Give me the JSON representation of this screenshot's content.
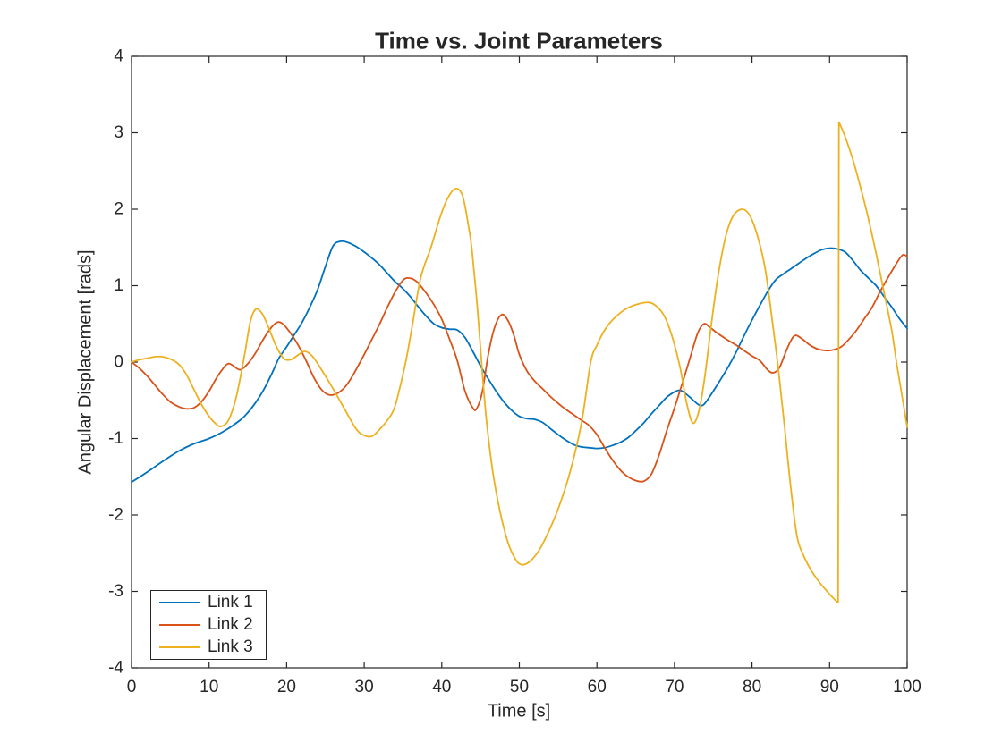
{
  "figure": {
    "background": "#ffffff",
    "axes_color": "#262626",
    "text_color": "#262626"
  },
  "chart_data": {
    "type": "line",
    "title": "Time vs. Joint Parameters",
    "xlabel": "Time [s]",
    "ylabel": "Angular Displacement [rads]",
    "xlim": [
      0,
      100
    ],
    "ylim": [
      -4,
      4
    ],
    "xticks": [
      0,
      10,
      20,
      30,
      40,
      50,
      60,
      70,
      80,
      90,
      100
    ],
    "yticks": [
      -4,
      -3,
      -2,
      -1,
      0,
      1,
      2,
      3,
      4
    ],
    "grid": false,
    "box": true,
    "legend": {
      "position": "bottom-left",
      "entries": [
        "Link 1",
        "Link 2",
        "Link 3"
      ]
    },
    "series": [
      {
        "name": "Link 1",
        "color": "#0072BD",
        "points": [
          [
            0,
            -1.57
          ],
          [
            2,
            -1.44
          ],
          [
            4,
            -1.3
          ],
          [
            6,
            -1.17
          ],
          [
            8,
            -1.07
          ],
          [
            10,
            -1.0
          ],
          [
            12,
            -0.9
          ],
          [
            14,
            -0.76
          ],
          [
            15,
            -0.66
          ],
          [
            16,
            -0.53
          ],
          [
            17,
            -0.37
          ],
          [
            18,
            -0.17
          ],
          [
            18.5,
            -0.06
          ],
          [
            19,
            0.05
          ],
          [
            20,
            0.2
          ],
          [
            21,
            0.36
          ],
          [
            22,
            0.52
          ],
          [
            23,
            0.72
          ],
          [
            24,
            0.95
          ],
          [
            25,
            1.25
          ],
          [
            26,
            1.52
          ],
          [
            27,
            1.58
          ],
          [
            28,
            1.56
          ],
          [
            29,
            1.51
          ],
          [
            30,
            1.44
          ],
          [
            31,
            1.36
          ],
          [
            32,
            1.27
          ],
          [
            33,
            1.16
          ],
          [
            34,
            1.05
          ],
          [
            35,
            0.96
          ],
          [
            36,
            0.85
          ],
          [
            37,
            0.72
          ],
          [
            38,
            0.6
          ],
          [
            39,
            0.5
          ],
          [
            40,
            0.45
          ],
          [
            41,
            0.43
          ],
          [
            42,
            0.42
          ],
          [
            43,
            0.32
          ],
          [
            44,
            0.14
          ],
          [
            45,
            -0.05
          ],
          [
            46,
            -0.22
          ],
          [
            47,
            -0.38
          ],
          [
            48,
            -0.52
          ],
          [
            49,
            -0.63
          ],
          [
            50,
            -0.71
          ],
          [
            51,
            -0.74
          ],
          [
            52,
            -0.75
          ],
          [
            53,
            -0.79
          ],
          [
            54,
            -0.87
          ],
          [
            55,
            -0.95
          ],
          [
            56,
            -1.02
          ],
          [
            57,
            -1.08
          ],
          [
            58,
            -1.11
          ],
          [
            59,
            -1.12
          ],
          [
            60,
            -1.13
          ],
          [
            61,
            -1.12
          ],
          [
            62,
            -1.09
          ],
          [
            63,
            -1.05
          ],
          [
            64,
            -0.99
          ],
          [
            65,
            -0.9
          ],
          [
            66,
            -0.8
          ],
          [
            67,
            -0.68
          ],
          [
            68,
            -0.57
          ],
          [
            69,
            -0.46
          ],
          [
            70,
            -0.39
          ],
          [
            70.5,
            -0.37
          ],
          [
            71,
            -0.38
          ],
          [
            72,
            -0.46
          ],
          [
            73,
            -0.55
          ],
          [
            73.5,
            -0.57
          ],
          [
            74,
            -0.53
          ],
          [
            75,
            -0.38
          ],
          [
            76,
            -0.22
          ],
          [
            77,
            -0.05
          ],
          [
            78,
            0.14
          ],
          [
            79,
            0.35
          ],
          [
            80,
            0.55
          ],
          [
            81,
            0.74
          ],
          [
            82,
            0.92
          ],
          [
            83,
            1.07
          ],
          [
            84,
            1.15
          ],
          [
            85,
            1.22
          ],
          [
            86,
            1.29
          ],
          [
            87,
            1.36
          ],
          [
            88,
            1.42
          ],
          [
            89,
            1.47
          ],
          [
            90,
            1.49
          ],
          [
            91,
            1.48
          ],
          [
            92,
            1.44
          ],
          [
            93,
            1.33
          ],
          [
            94,
            1.2
          ],
          [
            95,
            1.1
          ],
          [
            96,
            1.0
          ],
          [
            97,
            0.86
          ],
          [
            98,
            0.72
          ],
          [
            99,
            0.57
          ],
          [
            100,
            0.44
          ]
        ]
      },
      {
        "name": "Link 2",
        "color": "#D95319",
        "points": [
          [
            0,
            0
          ],
          [
            1,
            -0.08
          ],
          [
            2,
            -0.18
          ],
          [
            3,
            -0.3
          ],
          [
            4,
            -0.42
          ],
          [
            5,
            -0.52
          ],
          [
            6,
            -0.58
          ],
          [
            7,
            -0.61
          ],
          [
            8,
            -0.6
          ],
          [
            9,
            -0.52
          ],
          [
            10,
            -0.38
          ],
          [
            11,
            -0.2
          ],
          [
            12,
            -0.06
          ],
          [
            12.5,
            -0.02
          ],
          [
            13,
            -0.04
          ],
          [
            14,
            -0.1
          ],
          [
            15,
            -0.02
          ],
          [
            16,
            0.12
          ],
          [
            17,
            0.3
          ],
          [
            18,
            0.45
          ],
          [
            18.8,
            0.52
          ],
          [
            19.5,
            0.5
          ],
          [
            20.5,
            0.38
          ],
          [
            21.5,
            0.22
          ],
          [
            22.5,
            0.02
          ],
          [
            23.5,
            -0.2
          ],
          [
            24.5,
            -0.36
          ],
          [
            25.5,
            -0.43
          ],
          [
            26.5,
            -0.41
          ],
          [
            27.5,
            -0.33
          ],
          [
            28.5,
            -0.18
          ],
          [
            30,
            0.1
          ],
          [
            31,
            0.3
          ],
          [
            32,
            0.5
          ],
          [
            33,
            0.72
          ],
          [
            34,
            0.92
          ],
          [
            35,
            1.07
          ],
          [
            35.8,
            1.1
          ],
          [
            36.8,
            1.05
          ],
          [
            38,
            0.9
          ],
          [
            39,
            0.75
          ],
          [
            40,
            0.56
          ],
          [
            41,
            0.3
          ],
          [
            42,
            0.02
          ],
          [
            43,
            -0.38
          ],
          [
            44,
            -0.6
          ],
          [
            44.5,
            -0.61
          ],
          [
            45.2,
            -0.4
          ],
          [
            46,
            0.1
          ],
          [
            46.8,
            0.45
          ],
          [
            47.7,
            0.62
          ],
          [
            48.5,
            0.55
          ],
          [
            49.3,
            0.35
          ],
          [
            50,
            0.1
          ],
          [
            51,
            -0.12
          ],
          [
            52,
            -0.25
          ],
          [
            53,
            -0.35
          ],
          [
            54,
            -0.45
          ],
          [
            55,
            -0.54
          ],
          [
            56,
            -0.62
          ],
          [
            57,
            -0.69
          ],
          [
            58,
            -0.76
          ],
          [
            59,
            -0.83
          ],
          [
            60,
            -0.95
          ],
          [
            61,
            -1.12
          ],
          [
            62,
            -1.28
          ],
          [
            63,
            -1.41
          ],
          [
            64,
            -1.5
          ],
          [
            65,
            -1.55
          ],
          [
            66,
            -1.56
          ],
          [
            67,
            -1.47
          ],
          [
            68,
            -1.22
          ],
          [
            69,
            -0.9
          ],
          [
            70,
            -0.6
          ],
          [
            71,
            -0.28
          ],
          [
            72,
            0.05
          ],
          [
            73,
            0.38
          ],
          [
            73.8,
            0.5
          ],
          [
            74.5,
            0.46
          ],
          [
            75.5,
            0.38
          ],
          [
            77,
            0.28
          ],
          [
            78,
            0.22
          ],
          [
            79,
            0.15
          ],
          [
            80,
            0.08
          ],
          [
            81,
            0.02
          ],
          [
            82,
            -0.1
          ],
          [
            82.7,
            -0.14
          ],
          [
            83.5,
            -0.08
          ],
          [
            84.3,
            0.12
          ],
          [
            85,
            0.28
          ],
          [
            85.6,
            0.35
          ],
          [
            86.5,
            0.3
          ],
          [
            87.5,
            0.22
          ],
          [
            88.5,
            0.17
          ],
          [
            89.7,
            0.15
          ],
          [
            90.5,
            0.16
          ],
          [
            91.5,
            0.2
          ],
          [
            92.5,
            0.3
          ],
          [
            93.5,
            0.42
          ],
          [
            94.5,
            0.57
          ],
          [
            95.5,
            0.72
          ],
          [
            96.5,
            0.92
          ],
          [
            97.5,
            1.1
          ],
          [
            98.5,
            1.27
          ],
          [
            99.4,
            1.4
          ],
          [
            100,
            1.38
          ]
        ]
      },
      {
        "name": "Link 3",
        "color": "#EDB120",
        "points": [
          [
            0,
            0
          ],
          [
            1,
            0.03
          ],
          [
            2,
            0.05
          ],
          [
            3,
            0.07
          ],
          [
            4,
            0.07
          ],
          [
            5,
            0.04
          ],
          [
            6,
            -0.02
          ],
          [
            7,
            -0.15
          ],
          [
            8,
            -0.35
          ],
          [
            9,
            -0.55
          ],
          [
            10,
            -0.71
          ],
          [
            11,
            -0.82
          ],
          [
            11.6,
            -0.84
          ],
          [
            12.5,
            -0.76
          ],
          [
            13.5,
            -0.46
          ],
          [
            14.5,
            0.05
          ],
          [
            15.3,
            0.52
          ],
          [
            16,
            0.69
          ],
          [
            16.8,
            0.64
          ],
          [
            17.6,
            0.47
          ],
          [
            18.6,
            0.22
          ],
          [
            19.6,
            0.05
          ],
          [
            20.5,
            0.03
          ],
          [
            21.3,
            0.08
          ],
          [
            22.3,
            0.14
          ],
          [
            23.3,
            0.08
          ],
          [
            24.5,
            -0.1
          ],
          [
            26,
            -0.35
          ],
          [
            27.5,
            -0.62
          ],
          [
            29,
            -0.88
          ],
          [
            30,
            -0.96
          ],
          [
            31,
            -0.97
          ],
          [
            32,
            -0.88
          ],
          [
            33,
            -0.76
          ],
          [
            33.9,
            -0.6
          ],
          [
            34.8,
            -0.25
          ],
          [
            35.5,
            0.08
          ],
          [
            36.2,
            0.48
          ],
          [
            37.3,
            1.11
          ],
          [
            38.6,
            1.5
          ],
          [
            39.8,
            1.9
          ],
          [
            40.8,
            2.15
          ],
          [
            41.8,
            2.27
          ],
          [
            42.7,
            2.17
          ],
          [
            43.5,
            1.75
          ],
          [
            43.9,
            1.46
          ],
          [
            44.6,
            0.7
          ],
          [
            45.2,
            -0.1
          ],
          [
            45.8,
            -0.8
          ],
          [
            46.6,
            -1.45
          ],
          [
            47.5,
            -1.95
          ],
          [
            48.5,
            -2.35
          ],
          [
            49.5,
            -2.58
          ],
          [
            50.3,
            -2.65
          ],
          [
            51.2,
            -2.62
          ],
          [
            52.3,
            -2.5
          ],
          [
            53.5,
            -2.28
          ],
          [
            55,
            -1.92
          ],
          [
            56.5,
            -1.45
          ],
          [
            58,
            -0.8
          ],
          [
            59.2,
            0
          ],
          [
            60,
            0.22
          ],
          [
            61,
            0.42
          ],
          [
            62,
            0.55
          ],
          [
            63.5,
            0.68
          ],
          [
            65,
            0.75
          ],
          [
            66.7,
            0.78
          ],
          [
            67.8,
            0.72
          ],
          [
            68.8,
            0.58
          ],
          [
            69.8,
            0.3
          ],
          [
            70.7,
            -0.06
          ],
          [
            71.6,
            -0.55
          ],
          [
            72.4,
            -0.8
          ],
          [
            73.2,
            -0.62
          ],
          [
            73.9,
            -0.2
          ],
          [
            74.7,
            0.45
          ],
          [
            75.5,
            1.05
          ],
          [
            76.5,
            1.6
          ],
          [
            77.5,
            1.9
          ],
          [
            78.7,
            2.0
          ],
          [
            79.7,
            1.92
          ],
          [
            80.7,
            1.65
          ],
          [
            81.7,
            1.22
          ],
          [
            82.6,
            0.55
          ],
          [
            83.4,
            -0.1
          ],
          [
            84.2,
            -0.85
          ],
          [
            85,
            -1.65
          ],
          [
            85.8,
            -2.28
          ],
          [
            86.6,
            -2.52
          ],
          [
            87.6,
            -2.72
          ],
          [
            88.6,
            -2.87
          ],
          [
            89.6,
            -2.99
          ],
          [
            90.4,
            -3.08
          ],
          [
            91.1,
            -3.15
          ],
          [
            91.2,
            3.14
          ],
          [
            92,
            2.95
          ],
          [
            93,
            2.65
          ],
          [
            94,
            2.28
          ],
          [
            95,
            1.88
          ],
          [
            96,
            1.42
          ],
          [
            97,
            0.92
          ],
          [
            98,
            0.42
          ],
          [
            98.7,
            -0.05
          ],
          [
            99.4,
            -0.48
          ],
          [
            100,
            -0.85
          ]
        ]
      }
    ]
  }
}
